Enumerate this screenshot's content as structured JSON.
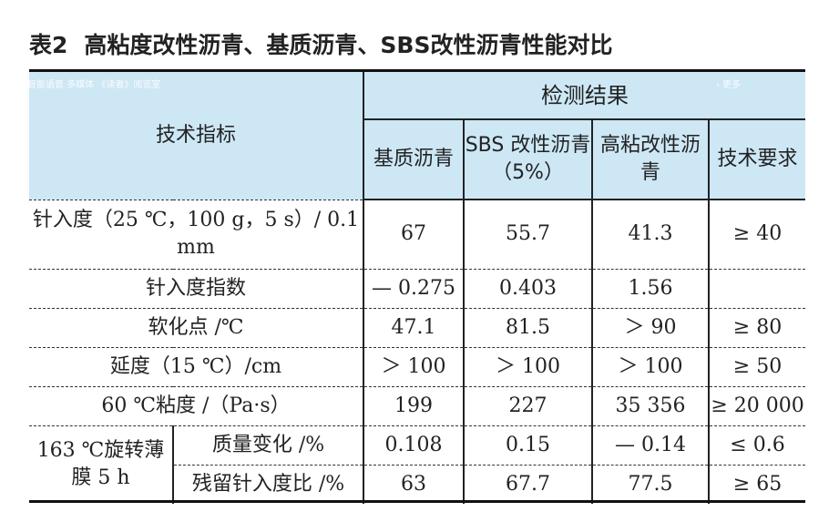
{
  "title": {
    "number": "表2",
    "text": "高粘度改性沥青、基质沥青、SBS改性沥青性能对比"
  },
  "overlay": {
    "left": "智能语音  多媒体  《读者》阅览室",
    "right": "› 更多"
  },
  "header": {
    "tech_indicator": "技术指标",
    "results": "检测结果",
    "columns": [
      "基质沥青",
      "SBS 改性沥青（5%）",
      "高粘改性沥青",
      "技术要求"
    ]
  },
  "rows": [
    {
      "label": "针入度（25 ℃，100 g，5 s）/ 0.1 mm",
      "values": [
        "67",
        "55.7",
        "41.3",
        "≥ 40"
      ]
    },
    {
      "label": "针入度指数",
      "values": [
        "— 0.275",
        "0.403",
        "1.56",
        ""
      ]
    },
    {
      "label": "软化点 /℃",
      "values": [
        "47.1",
        "81.5",
        "＞ 90",
        "≥ 80"
      ]
    },
    {
      "label": "延度（15 ℃）/cm",
      "values": [
        "＞ 100",
        "＞ 100",
        "＞ 100",
        "≥ 50"
      ]
    },
    {
      "label": "60 ℃粘度 /（Pa·s）",
      "values": [
        "199",
        "227",
        "35 356",
        "≥ 20 000"
      ]
    }
  ],
  "group": {
    "label": "163 ℃旋转薄膜 5 h",
    "rows": [
      {
        "label": "质量变化 /%",
        "values": [
          "0.108",
          "0.15",
          "— 0.14",
          "≤ 0.6"
        ]
      },
      {
        "label": "残留针入度比 /%",
        "values": [
          "63",
          "67.7",
          "77.5",
          "≥ 65"
        ]
      }
    ]
  }
}
